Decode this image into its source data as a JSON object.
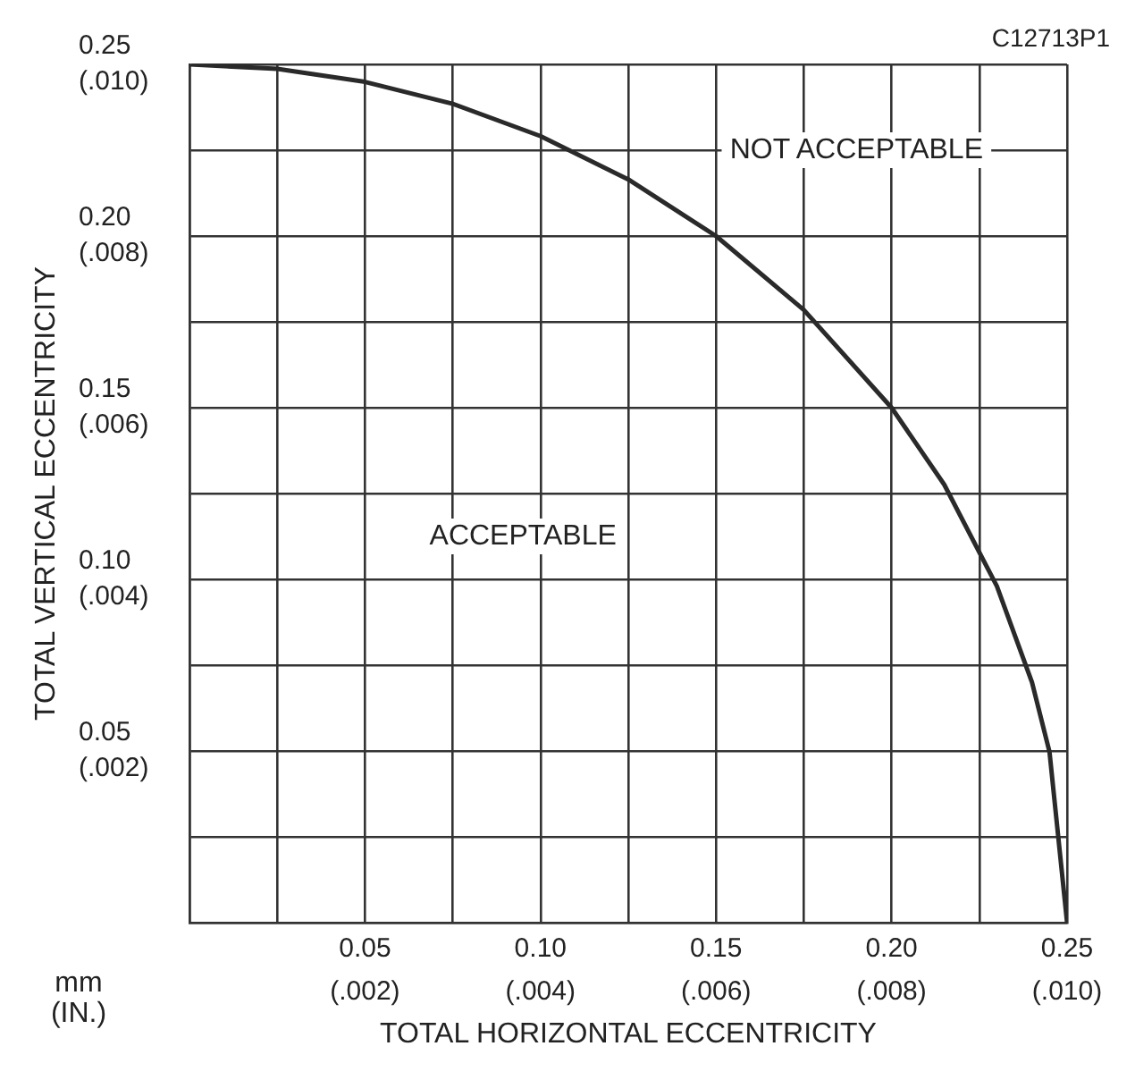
{
  "chart_data": {
    "type": "line",
    "xlabel": "TOTAL HORIZONTAL ECCENTRICITY",
    "ylabel": "TOTAL VERTICAL ECCENTRICITY",
    "x": [
      0,
      0.025,
      0.05,
      0.075,
      0.1,
      0.125,
      0.15,
      0.175,
      0.2,
      0.215,
      0.23,
      0.24,
      0.245,
      0.25
    ],
    "series": [
      {
        "color": "#2a2a2a",
        "values": [
          0.25,
          0.2487,
          0.2449,
          0.2385,
          0.2291,
          0.2165,
          0.2,
          0.1785,
          0.15,
          0.1276,
          0.098,
          0.07,
          0.0497,
          0
        ]
      }
    ],
    "xlim": [
      0,
      0.25
    ],
    "ylim": [
      0,
      0.25
    ],
    "xticks": [
      {
        "value": 0,
        "label": null
      },
      {
        "value": 0.025,
        "label": null
      },
      0.05,
      {
        "value": 0.075,
        "label": null
      },
      {
        "value": 0.1,
        "label": "0.10"
      },
      {
        "value": 0.125,
        "label": null
      },
      0.15,
      {
        "value": 0.175,
        "label": null
      },
      {
        "value": 0.2,
        "label": "0.20"
      },
      {
        "value": 0.225,
        "label": null
      },
      0.25
    ],
    "yticks": [
      {
        "value": 0,
        "label": null
      },
      {
        "value": 0.025,
        "label": null
      },
      0.05,
      {
        "value": 0.075,
        "label": null
      },
      {
        "value": 0.1,
        "label": "0.10"
      },
      {
        "value": 0.125,
        "label": null
      },
      0.15,
      {
        "value": 0.175,
        "label": null
      },
      {
        "value": 0.2,
        "label": "0.20"
      },
      {
        "value": 0.225,
        "label": null
      },
      0.25
    ],
    "x2lim": [
      0,
      0.01
    ],
    "x2ticks": [
      {
        "value": 0.002,
        "label": "(.002)"
      },
      {
        "value": 0.004,
        "label": "(.004)"
      },
      {
        "value": 0.006,
        "label": "(.006)"
      },
      {
        "value": 0.008,
        "label": "(.008)"
      },
      {
        "value": 0.01,
        "label": "(.010)"
      }
    ],
    "y2lim": [
      0,
      0.01
    ],
    "y2ticks": [
      {
        "value": 0.002,
        "label": "(.002)"
      },
      {
        "value": 0.004,
        "label": "(.004)"
      },
      {
        "value": 0.006,
        "label": "(.006)"
      },
      {
        "value": 0.008,
        "label": "(.008)"
      },
      {
        "value": 0.01,
        "label": "(.010)"
      }
    ],
    "grid": true,
    "legend": false,
    "marker": "none",
    "line_style": "solid",
    "annotations": [
      "C12713P1",
      "mm\n(IN.)",
      "NOT ACCEPTABLE",
      "ACCEPTABLE"
    ]
  }
}
